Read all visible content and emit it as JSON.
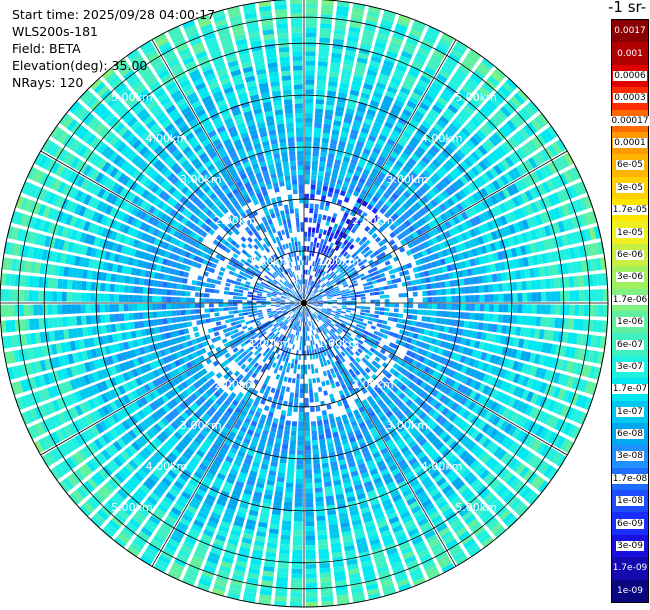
{
  "header": {
    "start_time": "Start time: 2025/09/28 04:00:17",
    "station": "WLS200s-181",
    "field": "Field: BETA",
    "elevation": "Elevation(deg): 35.00",
    "nrays": "NRays: 120"
  },
  "colorbar": {
    "title": "-1 sr-",
    "labels": [
      "0.0017",
      "0.001",
      "0.0006",
      "0.0003",
      "0.00017",
      "0.0001",
      "6e-05",
      "3e-05",
      "1.7e-05",
      "1e-05",
      "6e-06",
      "3e-06",
      "1.7e-06",
      "1e-06",
      "6e-07",
      "3e-07",
      "1.7e-07",
      "1e-07",
      "6e-08",
      "3e-08",
      "1.7e-08",
      "1e-08",
      "6e-09",
      "3e-09",
      "1.7e-09",
      "1e-09"
    ],
    "colors": [
      "#8b0000",
      "#b00000",
      "#e00000",
      "#ff2a00",
      "#ff6a00",
      "#ff9a00",
      "#ffb400",
      "#ffd000",
      "#ffe600",
      "#f0f020",
      "#c8f040",
      "#a0f060",
      "#80f080",
      "#60f0a0",
      "#40f0c0",
      "#20f0e0",
      "#00e8f0",
      "#00c8f0",
      "#00a8f0",
      "#1e90ff",
      "#1e6eff",
      "#1e4eff",
      "#1a2eff",
      "#1a10e0",
      "#140ab0",
      "#0a0680"
    ]
  },
  "chart_data": {
    "type": "heatmap",
    "title": "",
    "projection": "polar PPI",
    "field": "BETA",
    "elevation_deg": 35.0,
    "n_rays": 120,
    "range_rings_km": [
      1,
      2,
      3,
      4,
      5
    ],
    "range_labels": [
      "1.00km",
      "2.00km",
      "3.00km",
      "4.00km",
      "5.00km"
    ],
    "max_range_km": 5.0,
    "color_scale": "log",
    "value_range": [
      1e-09,
      0.0017
    ],
    "typical_value": 3e-08,
    "outer_rim_value": 1e-07,
    "enhanced_sector": {
      "azimuth_deg": [
        0,
        40
      ],
      "range_km": [
        0.2,
        2.2
      ],
      "value": 6e-09
    }
  }
}
